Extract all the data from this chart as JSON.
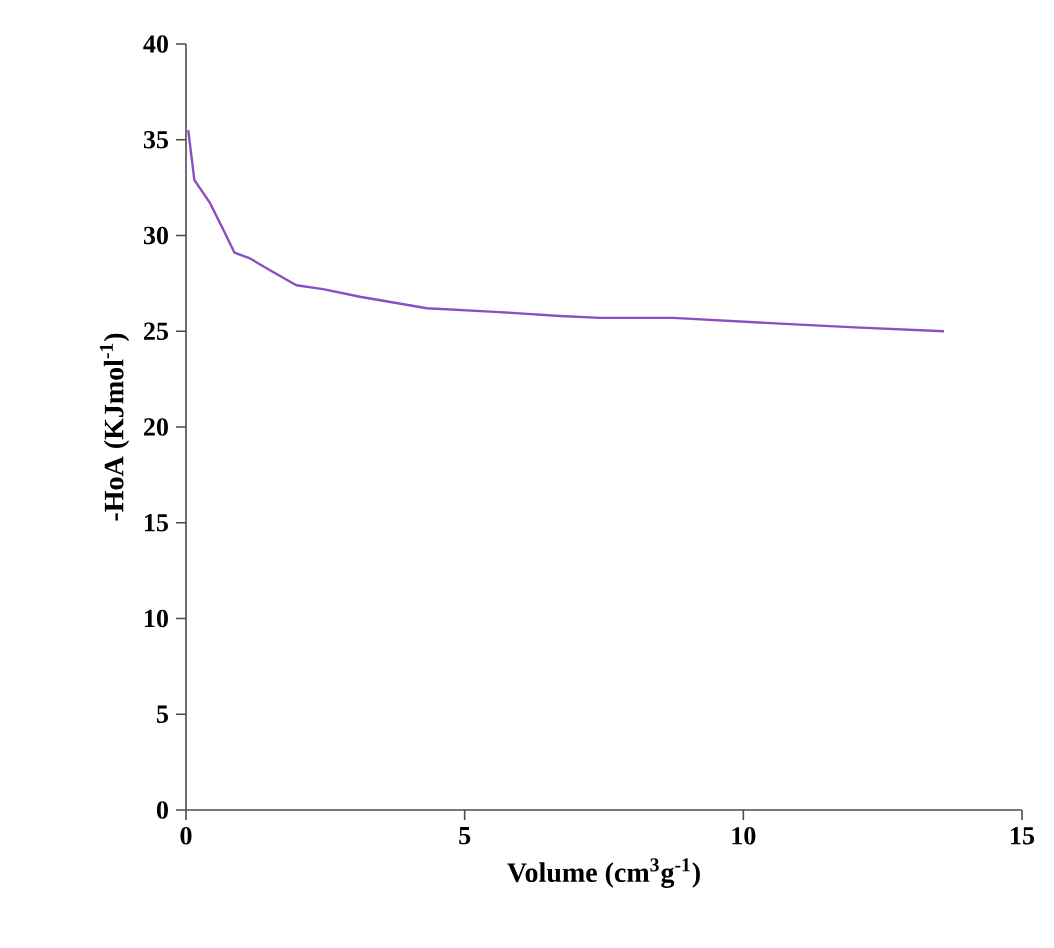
{
  "chart_data": {
    "type": "line",
    "xlabel": "Volume (cm$^{3}$g$^{-1}$)",
    "ylabel": "-HoA (KJmol$^{-1}$)",
    "xlim": [
      0,
      15
    ],
    "ylim": [
      0,
      40
    ],
    "xticks": [
      0,
      5,
      10,
      15
    ],
    "yticks": [
      0,
      5,
      10,
      15,
      20,
      25,
      30,
      35,
      40
    ],
    "grid": false,
    "marker": "none",
    "line_style": "solid",
    "series": [
      {
        "color": "#8a4fc4",
        "x": [
          0.04,
          0.15,
          0.43,
          0.67,
          0.87,
          1.15,
          1.5,
          1.98,
          2.46,
          3.12,
          4.32,
          5.63,
          6.71,
          7.43,
          8.74,
          10.66,
          12.0,
          13.6
        ],
        "values": [
          35.5,
          32.9,
          31.7,
          30.3,
          29.1,
          28.8,
          28.2,
          27.4,
          27.2,
          26.8,
          26.2,
          26.0,
          25.8,
          25.7,
          25.7,
          25.4,
          25.2,
          25.0
        ]
      }
    ]
  }
}
